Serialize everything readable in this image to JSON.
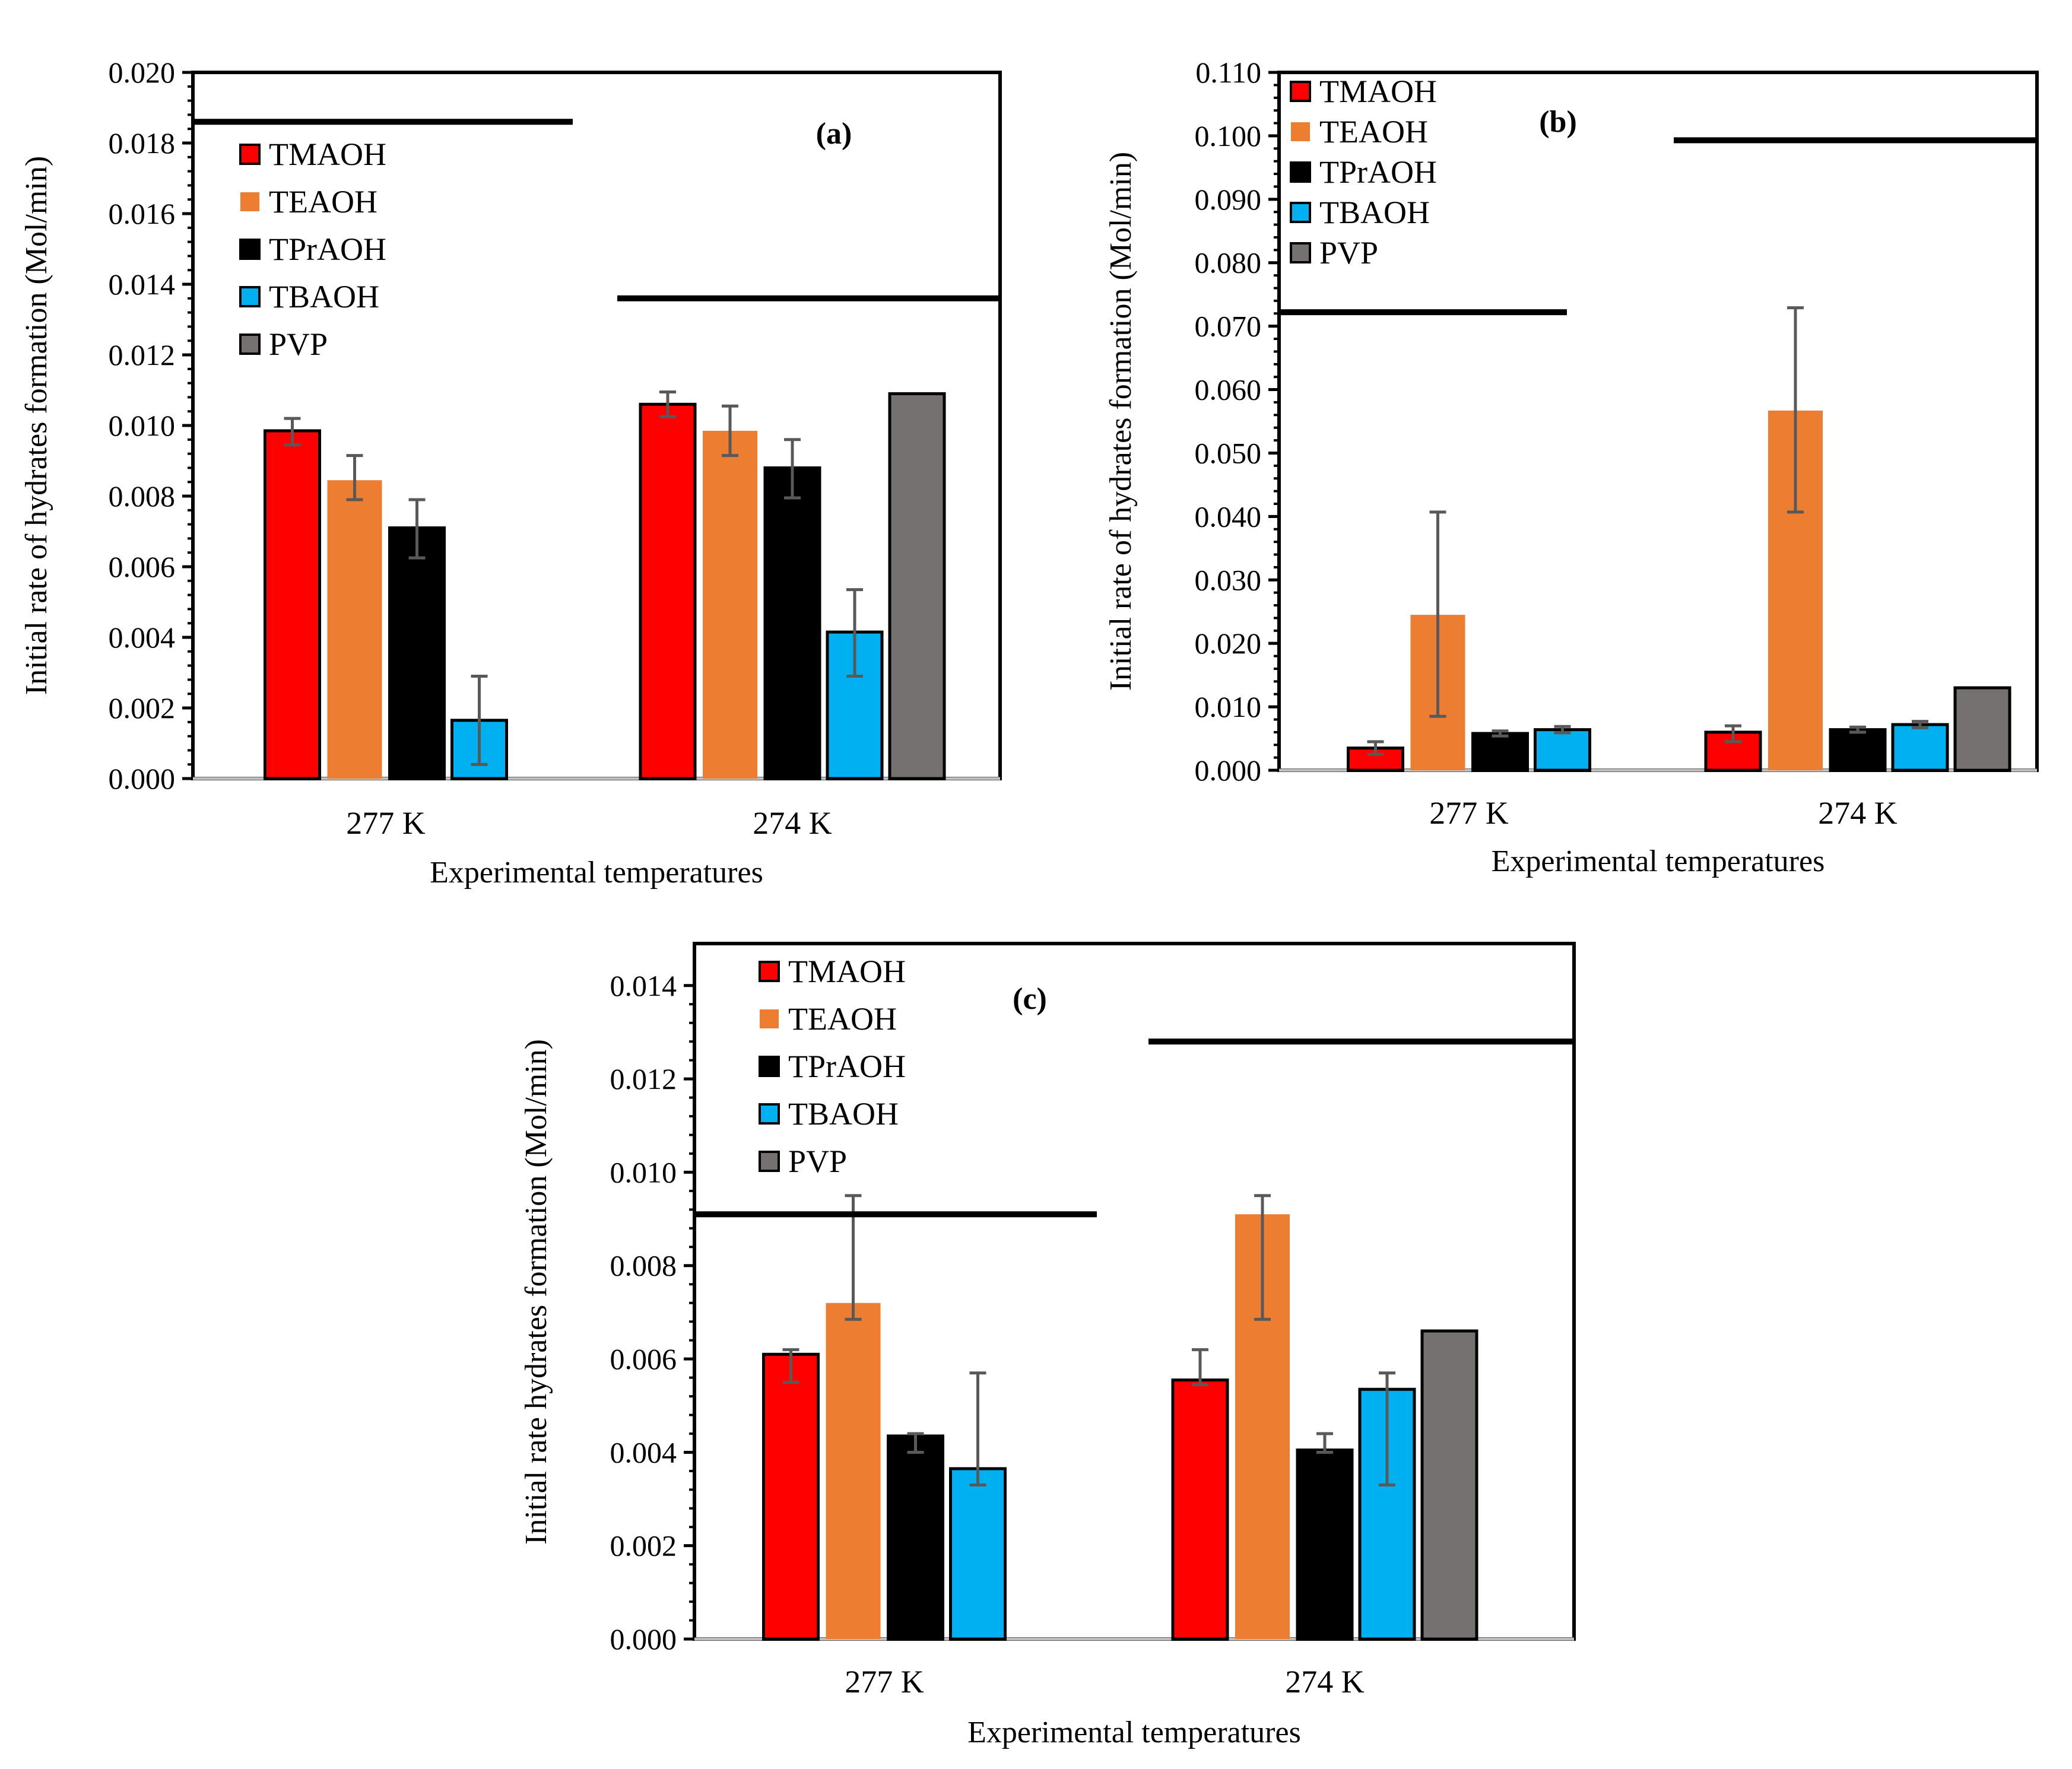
{
  "figure": {
    "panels": [
      {
        "id": "a",
        "panel_label": "(a)"
      },
      {
        "id": "b",
        "panel_label": "(b)"
      },
      {
        "id": "c",
        "panel_label": "(c)"
      }
    ]
  },
  "chart_data": [
    {
      "type": "bar",
      "panel": "(a)",
      "title": "",
      "xlabel": "Experimental temperatures",
      "ylabel": "Initial rate of hydrates formation  (Mol/min)",
      "ylim": [
        0,
        0.02
      ],
      "yticks": [
        "0.000",
        "0.002",
        "0.004",
        "0.006",
        "0.008",
        "0.010",
        "0.012",
        "0.014",
        "0.016",
        "0.018",
        "0.020"
      ],
      "categories": [
        "277 K",
        "274 K"
      ],
      "legend_position": "top-left",
      "series": [
        {
          "name": "TMAOH",
          "color": "#ff0000",
          "values": [
            0.00985,
            0.0106
          ],
          "err_low": [
            0.00945,
            0.01025
          ],
          "err_high": [
            0.0102,
            0.01095
          ]
        },
        {
          "name": "TEAOH",
          "color": "#ed7d31",
          "values": [
            0.00845,
            0.00985
          ],
          "err_low": [
            0.0079,
            0.00915
          ],
          "err_high": [
            0.00915,
            0.01055
          ]
        },
        {
          "name": "TPrAOH",
          "color": "#000000",
          "values": [
            0.0071,
            0.0088
          ],
          "err_low": [
            0.00625,
            0.00795
          ],
          "err_high": [
            0.0079,
            0.0096
          ]
        },
        {
          "name": "TBAOH",
          "color": "#00b0f0",
          "values": [
            0.00165,
            0.00415
          ],
          "err_low": [
            0.0004,
            0.0029
          ],
          "err_high": [
            0.0029,
            0.00535
          ]
        },
        {
          "name": "PVP",
          "color": "#767171",
          "values": [
            null,
            0.0109
          ],
          "err_low": [
            null,
            null
          ],
          "err_high": [
            null,
            null
          ]
        }
      ],
      "reference_lines": [
        {
          "value": 0.0186,
          "span": "277 K"
        },
        {
          "value": 0.0136,
          "span": "274 K"
        }
      ]
    },
    {
      "type": "bar",
      "panel": "(b)",
      "title": "",
      "xlabel": "Experimental temperatures",
      "ylabel": "Initial rate of hydrates formation  (Mol/min)",
      "ylim": [
        0,
        0.11
      ],
      "yticks": [
        "0.000",
        "0.010",
        "0.020",
        "0.030",
        "0.040",
        "0.050",
        "0.060",
        "0.070",
        "0.080",
        "0.090",
        "0.100",
        "0.110"
      ],
      "categories": [
        "277 K",
        "274 K"
      ],
      "legend_position": "top-left",
      "series": [
        {
          "name": "TMAOH",
          "color": "#ff0000",
          "values": [
            0.0035,
            0.006
          ],
          "err_low": [
            0.0025,
            0.0045
          ],
          "err_high": [
            0.0045,
            0.007
          ]
        },
        {
          "name": "TEAOH",
          "color": "#ed7d31",
          "values": [
            0.0245,
            0.0567
          ],
          "err_low": [
            0.0085,
            0.0407
          ],
          "err_high": [
            0.0407,
            0.0729
          ]
        },
        {
          "name": "TPrAOH",
          "color": "#000000",
          "values": [
            0.0058,
            0.0064
          ],
          "err_low": [
            0.0054,
            0.006
          ],
          "err_high": [
            0.0062,
            0.0068
          ]
        },
        {
          "name": "TBAOH",
          "color": "#00b0f0",
          "values": [
            0.0064,
            0.0072
          ],
          "err_low": [
            0.0059,
            0.0067
          ],
          "err_high": [
            0.0069,
            0.0077
          ]
        },
        {
          "name": "PVP",
          "color": "#767171",
          "values": [
            null,
            0.013
          ],
          "err_low": [
            null,
            null
          ],
          "err_high": [
            null,
            null
          ]
        }
      ],
      "reference_lines": [
        {
          "value": 0.0722,
          "span": "277 K"
        },
        {
          "value": 0.0993,
          "span": "274 K"
        }
      ]
    },
    {
      "type": "bar",
      "panel": "(c)",
      "title": "",
      "xlabel": "Experimental temperatures",
      "ylabel": "Initial rate hydrates formation  (Mol/min)",
      "ylim": [
        0,
        0.0149
      ],
      "yticks": [
        "0.000",
        "0.002",
        "0.004",
        "0.006",
        "0.008",
        "0.010",
        "0.012",
        "0.014"
      ],
      "categories": [
        "277 K",
        "274 K"
      ],
      "legend_position": "top-left",
      "series": [
        {
          "name": "TMAOH",
          "color": "#ff0000",
          "values": [
            0.0061,
            0.00555
          ],
          "err_low": [
            0.0055,
            0.00545
          ],
          "err_high": [
            0.0062,
            0.0062
          ]
        },
        {
          "name": "TEAOH",
          "color": "#ed7d31",
          "values": [
            0.0072,
            0.0091
          ],
          "err_low": [
            0.00685,
            0.00685
          ],
          "err_high": [
            0.0095,
            0.0095
          ]
        },
        {
          "name": "TPrAOH",
          "color": "#000000",
          "values": [
            0.00435,
            0.00405
          ],
          "err_low": [
            0.004,
            0.004
          ],
          "err_high": [
            0.0044,
            0.0044
          ]
        },
        {
          "name": "TBAOH",
          "color": "#00b0f0",
          "values": [
            0.00365,
            0.00535
          ],
          "err_low": [
            0.0033,
            0.0033
          ],
          "err_high": [
            0.0057,
            0.0057
          ]
        },
        {
          "name": "PVP",
          "color": "#767171",
          "values": [
            null,
            0.0066
          ],
          "err_low": [
            null,
            null
          ],
          "err_high": [
            null,
            null
          ]
        }
      ],
      "reference_lines": [
        {
          "value": 0.0091,
          "span": "277 K"
        },
        {
          "value": 0.0128,
          "span": "274 K"
        }
      ]
    }
  ]
}
